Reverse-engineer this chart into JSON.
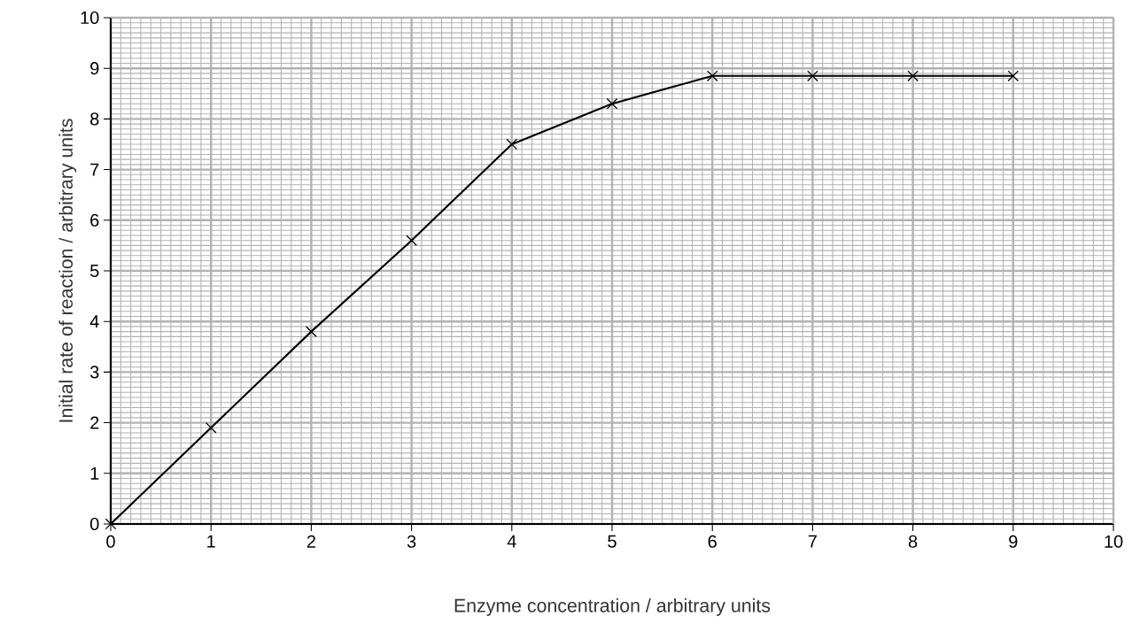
{
  "chart_data": {
    "type": "line",
    "xlabel": "Enzyme concentration / arbitrary units",
    "ylabel": "Initial rate of reaction / arbitrary units",
    "x": [
      0,
      1,
      2,
      3,
      4,
      5,
      6,
      7,
      8,
      9
    ],
    "series": [
      {
        "color": "#000000",
        "values": [
          0,
          1.9,
          3.8,
          5.6,
          7.5,
          8.3,
          8.85,
          8.85,
          8.85,
          8.85
        ]
      }
    ],
    "xlim": [
      0,
      10
    ],
    "ylim": [
      0,
      10
    ],
    "xticks": [
      0,
      1,
      2,
      3,
      4,
      5,
      6,
      7,
      8,
      9,
      10
    ],
    "yticks": [
      0,
      1,
      2,
      3,
      4,
      5,
      6,
      7,
      8,
      9,
      10
    ],
    "grid": true,
    "marker": "cross",
    "line_style": "solid"
  }
}
